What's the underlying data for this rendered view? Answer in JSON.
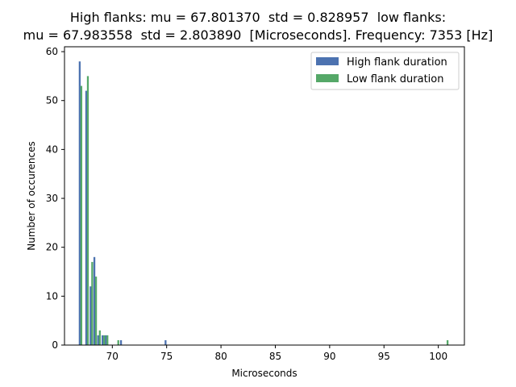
{
  "chart_data": {
    "type": "bar",
    "title_lines": [
      "High flanks: mu = 67.801370  std = 0.828957  low flanks:",
      "mu = 67.983558  std = 2.803890  [Microseconds]. Frequency: 7353 [Hz]"
    ],
    "xlabel": "Microseconds",
    "ylabel": "Number of occurences",
    "xlim": [
      65.6,
      102.4
    ],
    "ylim": [
      0,
      61
    ],
    "xticks": [
      70,
      75,
      80,
      85,
      90,
      95,
      100
    ],
    "yticks": [
      0,
      10,
      20,
      30,
      40,
      50,
      60
    ],
    "grid": false,
    "legend_position": "top-right",
    "bar_width": 0.17,
    "series": [
      {
        "name": "High flank duration",
        "color": "#4c72b0",
        "x": [
          67.0,
          67.6,
          68.0,
          68.35,
          68.7,
          69.1,
          69.4,
          70.8,
          74.9
        ],
        "values": [
          58,
          52,
          12,
          18,
          2,
          2,
          2,
          1,
          1
        ]
      },
      {
        "name": "Low flank duration",
        "color": "#55a868",
        "x": [
          67.15,
          67.75,
          68.15,
          68.5,
          68.85,
          69.25,
          69.55,
          70.55,
          100.85
        ],
        "values": [
          53,
          55,
          17,
          14,
          3,
          2,
          2,
          1,
          1
        ]
      }
    ]
  }
}
